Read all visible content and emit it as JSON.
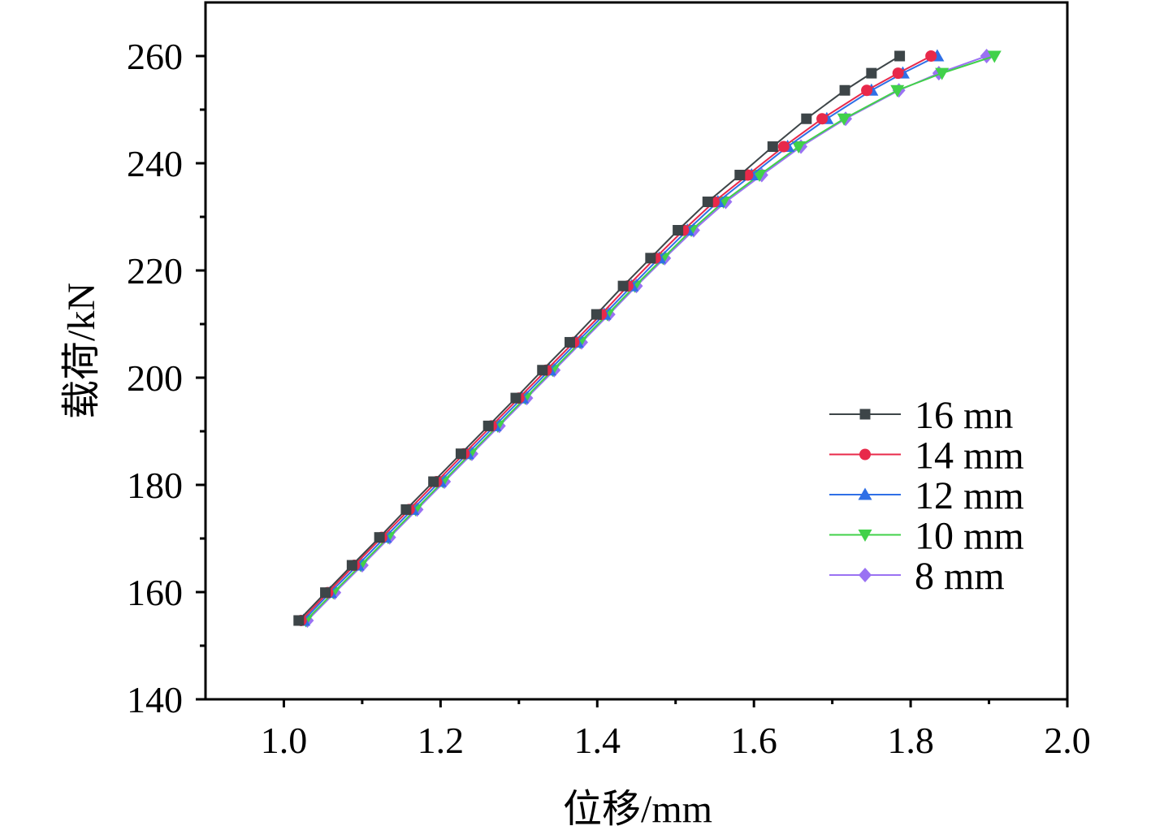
{
  "chart_data": {
    "type": "line",
    "title": "",
    "xlabel": "位移/mm",
    "ylabel": "载荷/kN",
    "xlim": [
      0.9,
      2.0
    ],
    "ylim": [
      140,
      270
    ],
    "x_ticks": [
      1.0,
      1.2,
      1.4,
      1.6,
      1.8,
      2.0
    ],
    "x_tick_labels": [
      "1.0",
      "1.2",
      "1.4",
      "1.6",
      "1.8",
      "2.0"
    ],
    "y_ticks": [
      140,
      160,
      180,
      200,
      220,
      240,
      260
    ],
    "y_tick_labels": [
      "140",
      "160",
      "180",
      "200",
      "220",
      "240",
      "260"
    ],
    "grid": false,
    "legend_position": "right",
    "y": [
      154.7,
      159.9,
      165.0,
      170.2,
      175.4,
      180.6,
      185.8,
      191.0,
      196.2,
      201.4,
      206.6,
      211.8,
      217.1,
      222.3,
      227.5,
      232.8,
      237.8,
      243.1,
      248.3,
      253.6,
      256.8,
      260.0
    ],
    "series": [
      {
        "name": "16 mn",
        "color": "#3d4548",
        "marker": "square",
        "x": [
          1.019,
          1.053,
          1.087,
          1.122,
          1.156,
          1.191,
          1.226,
          1.261,
          1.296,
          1.33,
          1.365,
          1.399,
          1.433,
          1.468,
          1.503,
          1.541,
          1.582,
          1.624,
          1.667,
          1.716,
          1.75,
          1.786
        ]
      },
      {
        "name": "14 mm",
        "color": "#e8294a",
        "marker": "circle",
        "x": [
          1.022,
          1.056,
          1.09,
          1.125,
          1.16,
          1.195,
          1.23,
          1.265,
          1.3,
          1.335,
          1.37,
          1.405,
          1.439,
          1.474,
          1.51,
          1.549,
          1.592,
          1.638,
          1.687,
          1.744,
          1.784,
          1.826
        ]
      },
      {
        "name": "12 mm",
        "color": "#2f6fe6",
        "marker": "triangle-up",
        "x": [
          1.025,
          1.059,
          1.094,
          1.129,
          1.164,
          1.199,
          1.234,
          1.269,
          1.304,
          1.339,
          1.374,
          1.409,
          1.444,
          1.479,
          1.515,
          1.554,
          1.597,
          1.643,
          1.693,
          1.75,
          1.79,
          1.834
        ]
      },
      {
        "name": "10 mm",
        "color": "#41d14a",
        "marker": "triangle-down",
        "x": [
          1.028,
          1.063,
          1.098,
          1.133,
          1.168,
          1.203,
          1.238,
          1.273,
          1.308,
          1.343,
          1.378,
          1.413,
          1.448,
          1.484,
          1.52,
          1.561,
          1.607,
          1.657,
          1.715,
          1.783,
          1.84,
          1.907
        ]
      },
      {
        "name": "8 mm",
        "color": "#9a72f3",
        "marker": "diamond",
        "x": [
          1.03,
          1.065,
          1.1,
          1.135,
          1.17,
          1.205,
          1.24,
          1.275,
          1.31,
          1.345,
          1.38,
          1.415,
          1.45,
          1.486,
          1.523,
          1.564,
          1.61,
          1.66,
          1.717,
          1.785,
          1.836,
          1.897
        ]
      }
    ]
  }
}
